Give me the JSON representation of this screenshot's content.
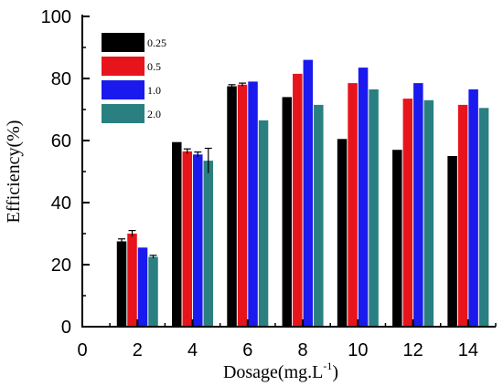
{
  "chart_data": {
    "type": "bar",
    "title": "",
    "xlabel": "Dosage(mg.L",
    "xlabel_superscript": "-1",
    "xlabel_suffix": ")",
    "ylabel": "Efficiency(%)",
    "ylim": [
      0,
      100
    ],
    "xlim": [
      0,
      15
    ],
    "xticks": [
      0,
      2,
      4,
      6,
      8,
      10,
      12,
      14
    ],
    "yticks": [
      0,
      20,
      40,
      60,
      80,
      100
    ],
    "grid": false,
    "legend_position": "top-left",
    "categories": [
      2,
      4,
      6,
      8,
      10,
      12,
      14
    ],
    "series": [
      {
        "name": "0.25",
        "color": "#000000",
        "values": [
          27.5,
          59.5,
          77.5,
          74,
          60.5,
          57,
          55
        ],
        "errors": [
          0.8,
          0,
          0.5,
          0,
          0,
          0,
          0
        ]
      },
      {
        "name": "0.5",
        "color": "#e8141c",
        "values": [
          30,
          56.5,
          78,
          81.5,
          78.5,
          73.5,
          71.5
        ],
        "errors": [
          1,
          0.8,
          0.5,
          0,
          0,
          0,
          0
        ]
      },
      {
        "name": "1.0",
        "color": "#1a1aee",
        "values": [
          25.5,
          55.5,
          79,
          86,
          83.5,
          78.5,
          76.5
        ],
        "errors": [
          0,
          0.8,
          0,
          0,
          0,
          0,
          0
        ]
      },
      {
        "name": "2.0",
        "color": "#2a8080",
        "values": [
          22.5,
          53.5,
          66.5,
          71.5,
          76.5,
          73,
          70.5
        ],
        "errors": [
          0.5,
          4,
          0,
          0,
          0,
          0,
          0
        ]
      }
    ]
  }
}
